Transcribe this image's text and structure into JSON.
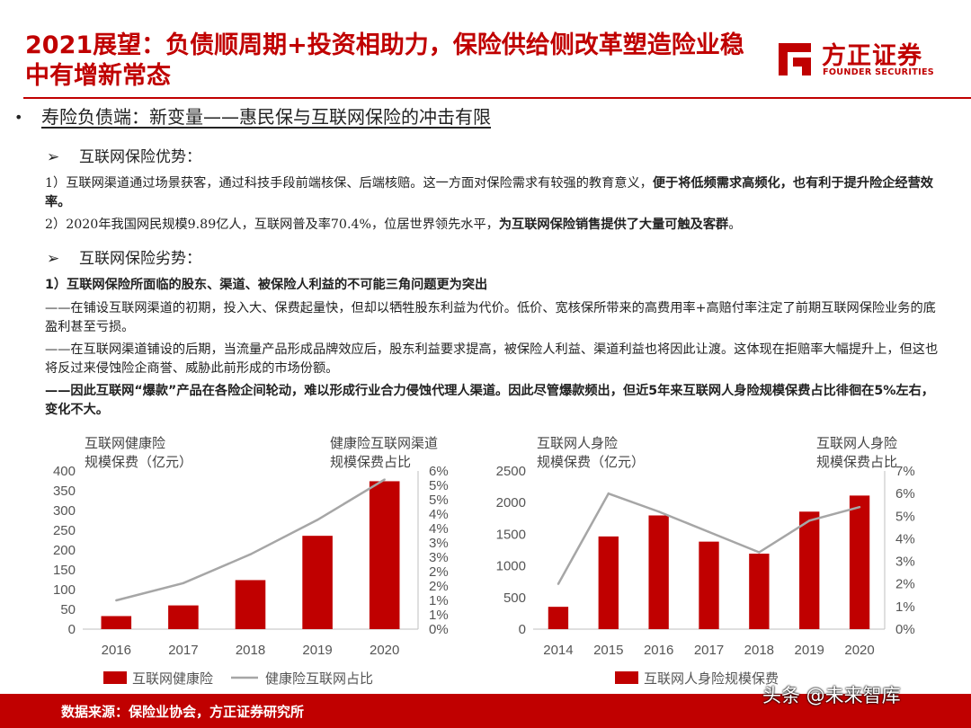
{
  "header": {
    "title": "2021展望：负债顺周期+投资相助力，保险供给侧改革塑造险业稳中有增新常态",
    "logo_cn": "方正证券",
    "logo_en": "FOUNDER SECURITIES",
    "brand_color": "#c00000"
  },
  "section": {
    "bullet": "•",
    "heading": "寿险负债端：新变量——惠民保与互联网保险的冲击有限"
  },
  "advantages": {
    "arrow": "➢",
    "title": "互联网保险优势：",
    "p1_normal": "1）互联网渠道通过场景获客，通过科技手段前端核保、后端核赔。这一方面对保险需求有较强的教育意义，",
    "p1_bold": "便于将低频需求高频化，也有利于提升险企经营效率。",
    "p2_normal": "2）2020年我国网民规模9.89亿人，互联网普及率70.4%，位居世界领先水平，",
    "p2_bold": "为互联网保险销售提供了大量可触及客群",
    "p2_tail": "。"
  },
  "disadvantages": {
    "arrow": "➢",
    "title": "互联网保险劣势：",
    "p1": "1）互联网保险所面临的股东、渠道、被保险人利益的不可能三角问题更为突出",
    "p2": "——在铺设互联网渠道的初期，投入大、保费起量快，但却以牺牲股东利益为代价。低价、宽核保所带来的高费用率+高赔付率注定了前期互联网保险业务的底盈利甚至亏损。",
    "p3": "——在互联网渠道铺设的后期，当流量产品形成品牌效应后，股东利益要求提高，被保险人利益、渠道利益也将因此让渡。这体现在拒赔率大幅提升上，但这也将反过来侵蚀险企商誉、威胁此前形成的市场份额。",
    "p4": "——因此互联网“爆款”产品在各险企间轮动，难以形成行业合力侵蚀代理人渠道。因此尽管爆款频出，但近5年来互联网人身险规模保费占比徘徊在5%左右，变化不大。"
  },
  "chart_data": [
    {
      "type": "bar",
      "categories": [
        "2016",
        "2017",
        "2018",
        "2019",
        "2020"
      ],
      "series": [
        {
          "name": "互联网健康险",
          "type": "bar",
          "axis": "left",
          "values": [
            33,
            60,
            124,
            236,
            374
          ],
          "color": "#c00000"
        },
        {
          "name": "健康险互联网占比",
          "type": "line",
          "axis": "right",
          "values": [
            1.0,
            1.6,
            2.6,
            3.8,
            5.2
          ],
          "color": "#a6a6a6"
        }
      ],
      "left_axis_label": "互联网健康险\n规模保费（亿元）",
      "right_axis_label": "健康险互联网渠道\n规模保费占比",
      "ylim_left": [
        0,
        400
      ],
      "yticks_left": [
        "0",
        "50",
        "100",
        "150",
        "200",
        "250",
        "300",
        "350",
        "400"
      ],
      "ylim_right": [
        0,
        5.5
      ],
      "yticks_right": [
        "0%",
        "1%",
        "1%",
        "2%",
        "2%",
        "3%",
        "3%",
        "4%",
        "4%",
        "5%",
        "5%",
        "6%"
      ],
      "legend": "bottom",
      "grid": false
    },
    {
      "type": "bar",
      "categories": [
        "2014",
        "2015",
        "2016",
        "2017",
        "2018",
        "2019",
        "2020"
      ],
      "series": [
        {
          "name": "互联网人身险规模保费",
          "type": "bar",
          "axis": "left",
          "values": [
            353,
            1465,
            1797,
            1383,
            1193,
            1857,
            2111
          ],
          "color": "#c00000"
        },
        {
          "name": "",
          "type": "line",
          "axis": "right",
          "values": [
            2.0,
            6.0,
            5.2,
            4.3,
            3.4,
            4.8,
            5.4
          ],
          "color": "#a6a6a6"
        }
      ],
      "left_axis_label": "互联网人身险\n规模保费（亿元）",
      "right_axis_label": "互联网人身险\n规模保费占比",
      "ylim_left": [
        0,
        2500
      ],
      "yticks_left": [
        "0",
        "500",
        "1000",
        "1500",
        "2000",
        "2500"
      ],
      "ylim_right": [
        0,
        7
      ],
      "yticks_right": [
        "0%",
        "1%",
        "2%",
        "3%",
        "4%",
        "5%",
        "6%",
        "7%"
      ],
      "legend": "bottom",
      "grid": false
    }
  ],
  "legend": {
    "chart1_bar": "互联网健康险",
    "chart1_line": "健康险互联网占比",
    "chart2_bar": "互联网人身险规模保费"
  },
  "footer": {
    "source": "数据来源：保险业协会，方正证券研究所",
    "watermark": "头条 @未来智库"
  }
}
